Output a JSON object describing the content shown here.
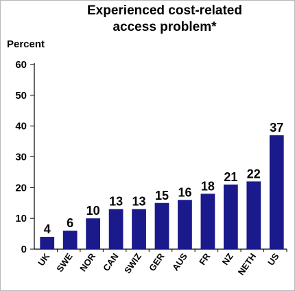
{
  "chart_data": {
    "type": "bar",
    "title_line1": "Experienced cost-related",
    "title_line2": "access problem*",
    "ylabel": "Percent",
    "xlabel": "",
    "categories": [
      "UK",
      "SWE",
      "NOR",
      "CAN",
      "SWIZ",
      "GER",
      "AUS",
      "FR",
      "NZ",
      "NETH",
      "US"
    ],
    "values": [
      4,
      6,
      10,
      13,
      13,
      15,
      16,
      18,
      21,
      22,
      37
    ],
    "yticks": [
      0,
      10,
      20,
      30,
      40,
      50,
      60
    ],
    "ylim": [
      0,
      60
    ],
    "bar_color": "#1a1a8c",
    "grid": false,
    "legend": "none"
  }
}
